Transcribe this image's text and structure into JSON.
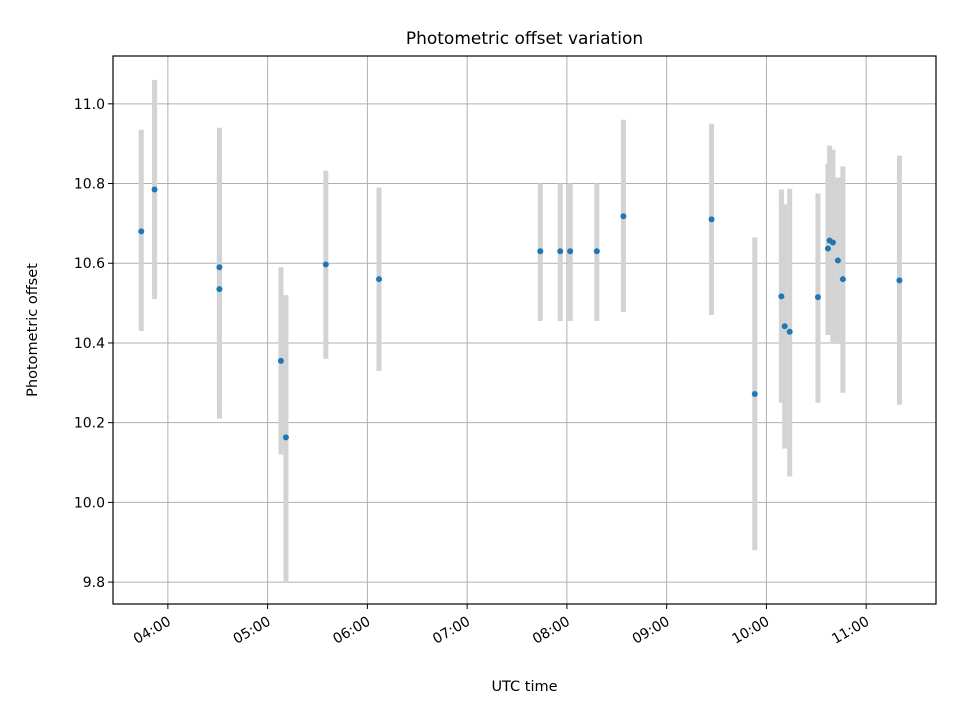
{
  "chart_data": {
    "type": "scatter",
    "title": "Photometric offset variation",
    "xlabel": "UTC time",
    "ylabel": "Photometric offset",
    "x_ticks": [
      "04:00",
      "05:00",
      "06:00",
      "07:00",
      "08:00",
      "09:00",
      "10:00",
      "11:00"
    ],
    "y_ticks": [
      "9.8",
      "10.0",
      "10.2",
      "10.4",
      "10.6",
      "10.8",
      "11.0"
    ],
    "xlim": [
      "03:27",
      "11:42"
    ],
    "ylim": [
      9.745,
      11.12
    ],
    "grid": true,
    "colors": {
      "point": "#1f77b4",
      "error_bar": "#d3d3d3",
      "grid": "#b0b0b0"
    },
    "points": [
      {
        "x": "03:44",
        "y": 10.68,
        "ylow": 10.43,
        "yhigh": 10.935
      },
      {
        "x": "03:52",
        "y": 10.785,
        "ylow": 10.51,
        "yhigh": 11.06
      },
      {
        "x": "04:31",
        "y": 10.59,
        "ylow": 10.245,
        "yhigh": 10.94
      },
      {
        "x": "04:31",
        "y": 10.535,
        "ylow": 10.21,
        "yhigh": 10.86
      },
      {
        "x": "05:08",
        "y": 10.355,
        "ylow": 10.12,
        "yhigh": 10.59
      },
      {
        "x": "05:11",
        "y": 10.163,
        "ylow": 9.8,
        "yhigh": 10.52
      },
      {
        "x": "05:35",
        "y": 10.597,
        "ylow": 10.36,
        "yhigh": 10.832
      },
      {
        "x": "06:07",
        "y": 10.56,
        "ylow": 10.33,
        "yhigh": 10.79
      },
      {
        "x": "07:44",
        "y": 10.63,
        "ylow": 10.455,
        "yhigh": 10.8
      },
      {
        "x": "07:56",
        "y": 10.63,
        "ylow": 10.455,
        "yhigh": 10.8
      },
      {
        "x": "08:02",
        "y": 10.63,
        "ylow": 10.455,
        "yhigh": 10.8
      },
      {
        "x": "08:18",
        "y": 10.63,
        "ylow": 10.455,
        "yhigh": 10.8
      },
      {
        "x": "08:34",
        "y": 10.718,
        "ylow": 10.478,
        "yhigh": 10.96
      },
      {
        "x": "09:27",
        "y": 10.71,
        "ylow": 10.47,
        "yhigh": 10.95
      },
      {
        "x": "09:53",
        "y": 10.272,
        "ylow": 9.88,
        "yhigh": 10.665
      },
      {
        "x": "10:09",
        "y": 10.517,
        "ylow": 10.25,
        "yhigh": 10.785
      },
      {
        "x": "10:11",
        "y": 10.442,
        "ylow": 10.135,
        "yhigh": 10.748
      },
      {
        "x": "10:14",
        "y": 10.428,
        "ylow": 10.065,
        "yhigh": 10.787
      },
      {
        "x": "10:31",
        "y": 10.515,
        "ylow": 10.25,
        "yhigh": 10.775
      },
      {
        "x": "10:37",
        "y": 10.637,
        "ylow": 10.42,
        "yhigh": 10.85
      },
      {
        "x": "10:38",
        "y": 10.657,
        "ylow": 10.42,
        "yhigh": 10.895
      },
      {
        "x": "10:40",
        "y": 10.652,
        "ylow": 10.4,
        "yhigh": 10.885
      },
      {
        "x": "10:43",
        "y": 10.607,
        "ylow": 10.4,
        "yhigh": 10.815
      },
      {
        "x": "10:46",
        "y": 10.56,
        "ylow": 10.275,
        "yhigh": 10.843
      },
      {
        "x": "11:20",
        "y": 10.557,
        "ylow": 10.245,
        "yhigh": 10.87
      }
    ]
  }
}
